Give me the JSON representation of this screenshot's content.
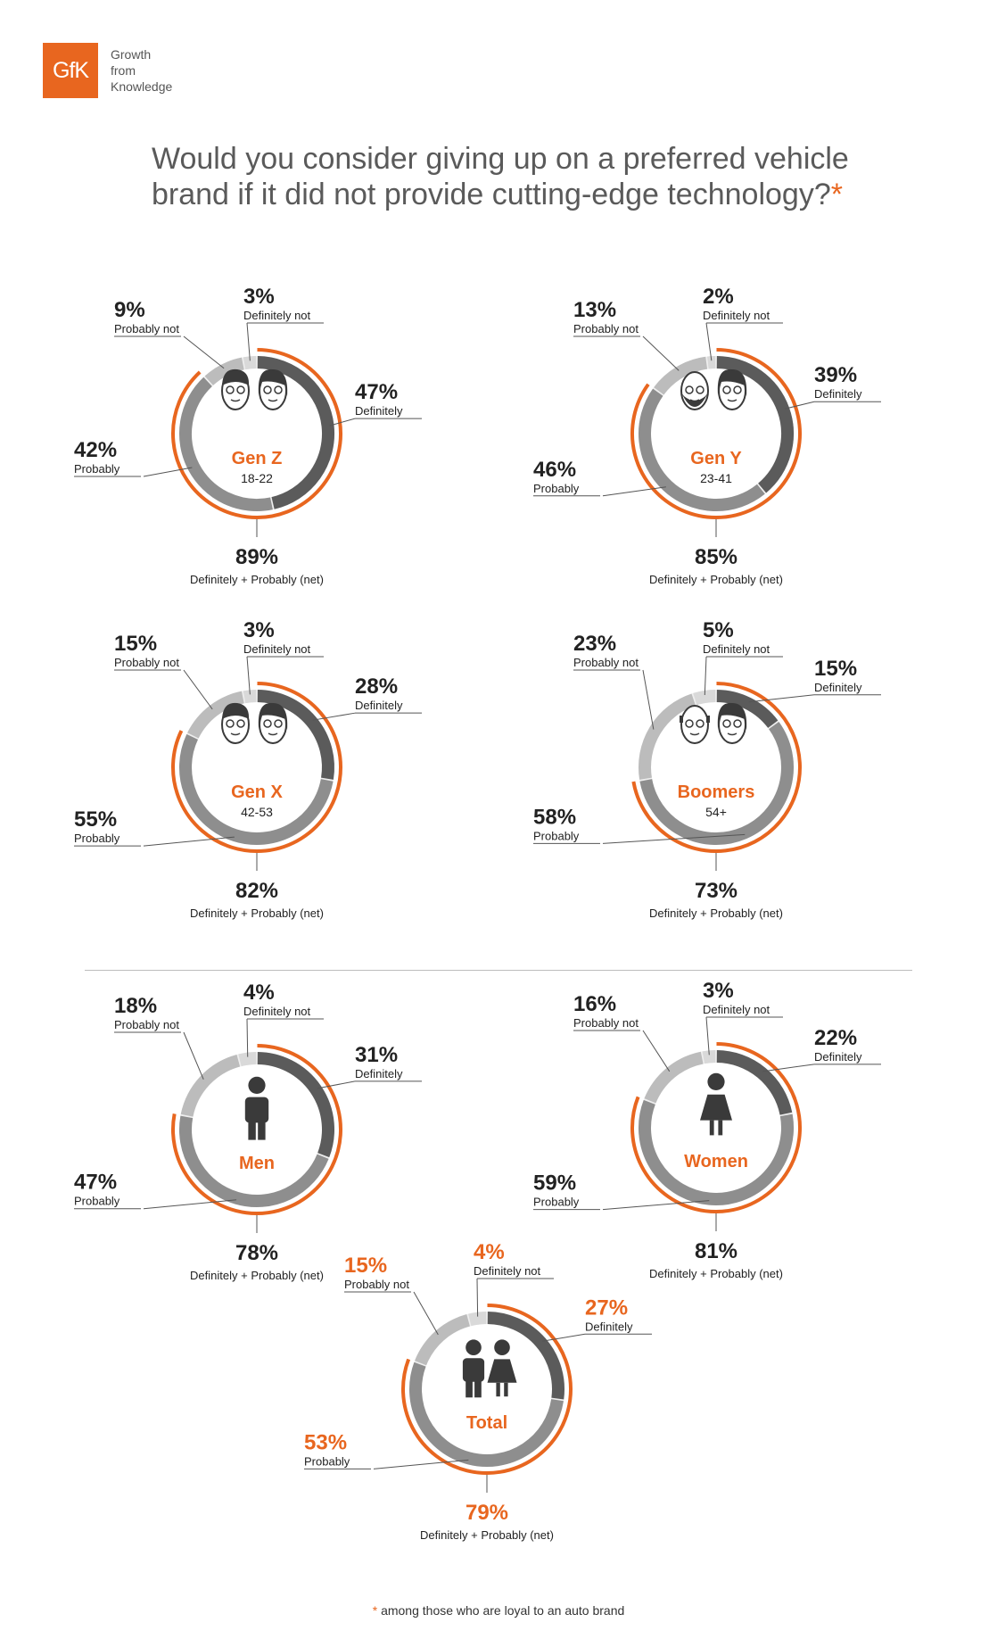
{
  "brand": {
    "logo_text": "GfK",
    "tagline": [
      "Growth",
      "from",
      "Knowledge"
    ],
    "accent_color": "#e8661f"
  },
  "title": {
    "line1": "Would you consider giving up on a preferred vehicle",
    "line2": "brand if it did not provide cutting-edge technology?",
    "asterisk": "*"
  },
  "footnote": {
    "asterisk": "*",
    "text": " among those who are loyal to an auto brand"
  },
  "colors": {
    "accent": "#e8661f",
    "definitely": "#5b5b5b",
    "probably": "#8e8e8e",
    "probably_not": "#bcbcbc",
    "definitely_not": "#d9d9d9",
    "icon": "#3a3a3a"
  },
  "chart_data": [
    {
      "type": "pie",
      "name": "Gen Z",
      "sublabel": "18-22",
      "icon": "gen-z-faces-icon",
      "highlight": false,
      "categories": [
        "Definitely",
        "Probably",
        "Probably not",
        "Definitely not"
      ],
      "values": [
        47,
        42,
        9,
        3
      ],
      "net": 89,
      "net_label": "Definitely + Probably (net)"
    },
    {
      "type": "pie",
      "name": "Gen Y",
      "sublabel": "23-41",
      "icon": "gen-y-faces-icon",
      "highlight": false,
      "categories": [
        "Definitely",
        "Probably",
        "Probably not",
        "Definitely not"
      ],
      "values": [
        39,
        46,
        13,
        2
      ],
      "net": 85,
      "net_label": "Definitely + Probably (net)"
    },
    {
      "type": "pie",
      "name": "Gen X",
      "sublabel": "42-53",
      "icon": "gen-x-faces-icon",
      "highlight": false,
      "categories": [
        "Definitely",
        "Probably",
        "Probably not",
        "Definitely not"
      ],
      "values": [
        28,
        55,
        15,
        3
      ],
      "net": 82,
      "net_label": "Definitely + Probably (net)"
    },
    {
      "type": "pie",
      "name": "Boomers",
      "sublabel": "54+",
      "icon": "boomers-faces-icon",
      "highlight": false,
      "categories": [
        "Definitely",
        "Probably",
        "Probably not",
        "Definitely not"
      ],
      "values": [
        15,
        58,
        23,
        5
      ],
      "net": 73,
      "net_label": "Definitely + Probably (net)"
    },
    {
      "type": "pie",
      "name": "Men",
      "sublabel": "",
      "icon": "man-icon",
      "highlight": false,
      "categories": [
        "Definitely",
        "Probably",
        "Probably not",
        "Definitely not"
      ],
      "values": [
        31,
        47,
        18,
        4
      ],
      "net": 78,
      "net_label": "Definitely + Probably (net)"
    },
    {
      "type": "pie",
      "name": "Women",
      "sublabel": "",
      "icon": "woman-icon",
      "highlight": false,
      "categories": [
        "Definitely",
        "Probably",
        "Probably not",
        "Definitely not"
      ],
      "values": [
        22,
        59,
        16,
        3
      ],
      "net": 81,
      "net_label": "Definitely + Probably (net)"
    },
    {
      "type": "pie",
      "name": "Total",
      "sublabel": "",
      "icon": "man-woman-icon",
      "highlight": true,
      "categories": [
        "Definitely",
        "Probably",
        "Probably not",
        "Definitely not"
      ],
      "values": [
        27,
        53,
        15,
        4
      ],
      "net": 79,
      "net_label": "Definitely + Probably (net)"
    }
  ]
}
